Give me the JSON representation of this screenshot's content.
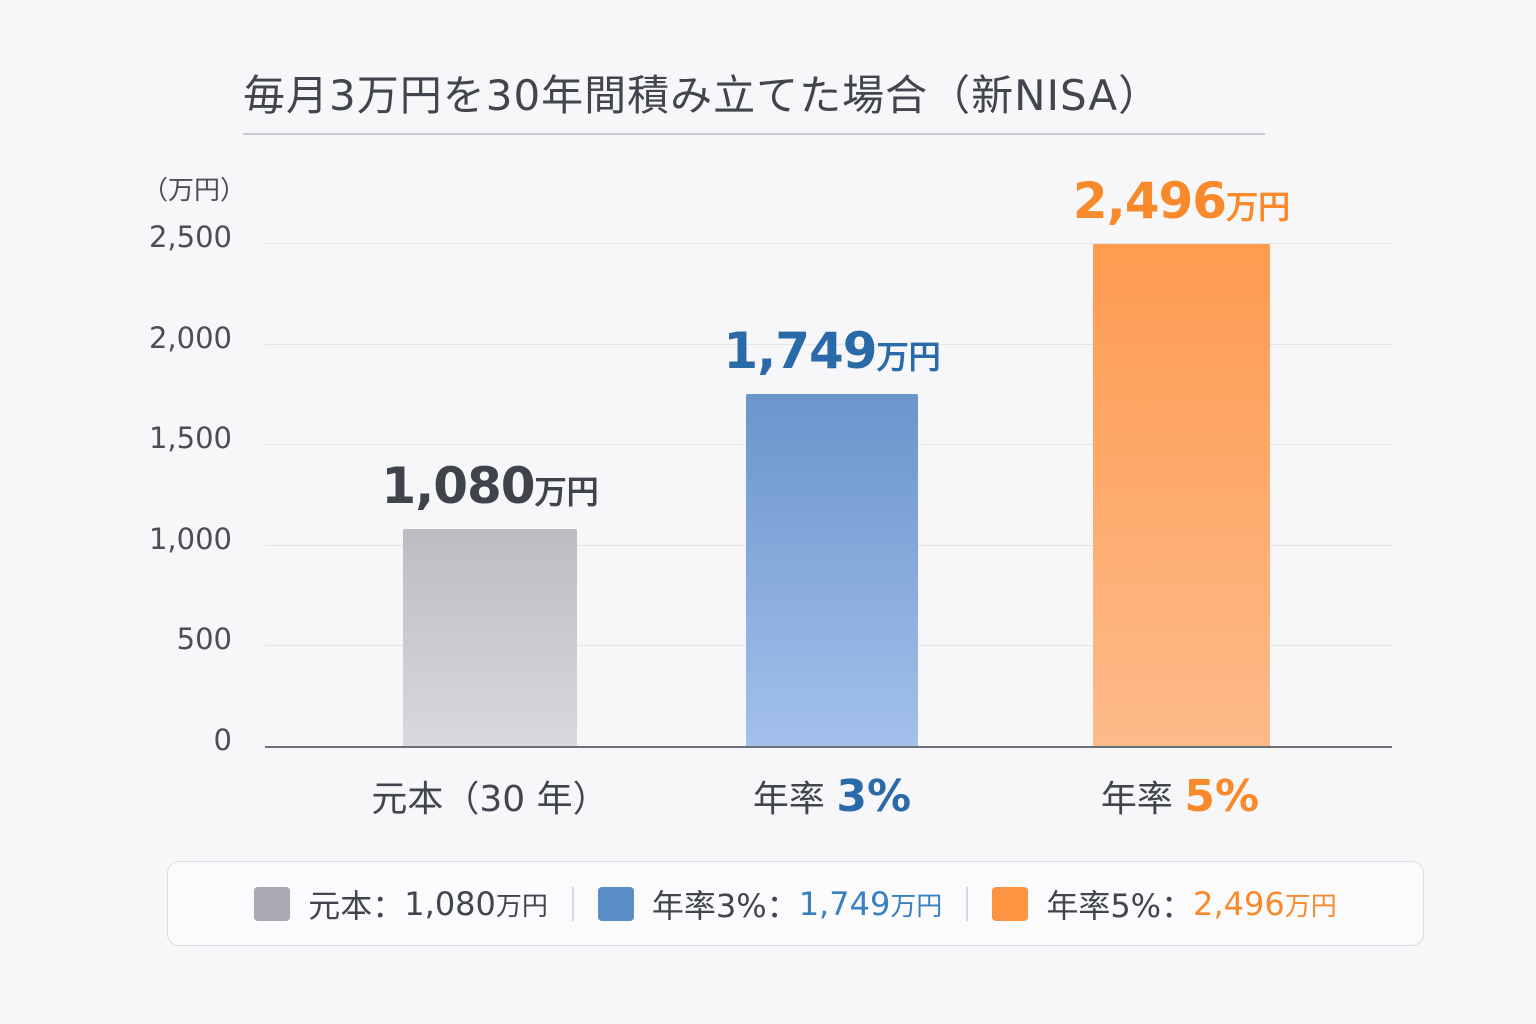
{
  "title": "毎月3万円を30年間積み立てた場合（新NISA）",
  "y_axis": {
    "unit_label": "（万円）",
    "ticks": [
      "2,500",
      "2,000",
      "1,500",
      "1,000",
      "500",
      "0"
    ]
  },
  "bars": [
    {
      "value_text": "1,080",
      "unit": "万円",
      "category_text": "元本（30 年）",
      "category_prefix": "",
      "category_accent": "",
      "color": "#bdbdc3",
      "label_color": "#3f434c"
    },
    {
      "value_text": "1,749",
      "unit": "万円",
      "category_text": "",
      "category_prefix": "年率 ",
      "category_accent": "3%",
      "color": "#6f97cf",
      "label_color": "#2a6aa8"
    },
    {
      "value_text": "2,496",
      "unit": "万円",
      "category_text": "",
      "category_prefix": "年率 ",
      "category_accent": "5%",
      "color": "#fe9c52",
      "label_color": "#f98a2b"
    }
  ],
  "legend": [
    {
      "label": "元本：",
      "value": "1,080",
      "unit": "万円",
      "swatch": "#a9a9b1",
      "value_color": "#41454e"
    },
    {
      "label": "年率3%：",
      "value": "1,749",
      "unit": "万円",
      "swatch": "#5b8ec7",
      "value_color": "#3a7fc0"
    },
    {
      "label": "年率5%：",
      "value": "2,496",
      "unit": "万円",
      "swatch": "#fd9442",
      "value_color": "#f98a2b"
    }
  ],
  "chart_data": {
    "type": "bar",
    "title": "毎月3万円を30年間積み立てた場合（新NISA）",
    "categories": [
      "元本（30年）",
      "年率3%",
      "年率5%"
    ],
    "values": [
      1080,
      1749,
      2496
    ],
    "data_labels": [
      "1,080万円",
      "1,749万円",
      "2,496万円"
    ],
    "xlabel": "",
    "ylabel": "（万円）",
    "ylim": [
      0,
      2500
    ],
    "yticks": [
      0,
      500,
      1000,
      1500,
      2000,
      2500
    ],
    "grid": true,
    "legend_position": "bottom",
    "legend": [
      "元本：1,080万円",
      "年率3%：1,749万円",
      "年率5%：2,496万円"
    ],
    "colors": [
      "#bdbdc3",
      "#6f97cf",
      "#fe9c52"
    ]
  }
}
